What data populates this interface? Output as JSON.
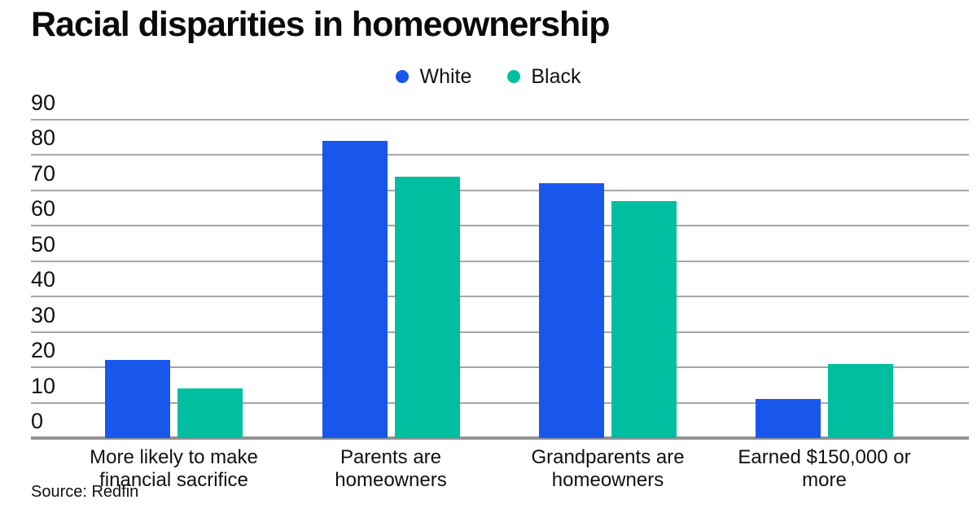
{
  "title": "Racial disparities in homeownership",
  "source": "Source: Redfin",
  "legend": [
    {
      "label": "White",
      "color": "#1957EC"
    },
    {
      "label": "Black",
      "color": "#00BFA0"
    }
  ],
  "chart_data": {
    "type": "bar",
    "title": "Racial disparities in homeownership",
    "categories": [
      "More likely to make\nfinancial sacrifice",
      "Parents are\nhomeowners",
      "Grandparents are\nhomeowners",
      "Earned $150,000 or\nmore"
    ],
    "series": [
      {
        "name": "White",
        "color": "#1957EC",
        "values": [
          22,
          84,
          72,
          11
        ]
      },
      {
        "name": "Black",
        "color": "#00BFA0",
        "values": [
          14,
          74,
          67,
          21
        ]
      }
    ],
    "xlabel": "",
    "ylabel": "",
    "ylim": [
      0,
      90
    ],
    "yticks": [
      0,
      10,
      20,
      30,
      40,
      50,
      60,
      70,
      80,
      90
    ],
    "grid": true,
    "legend_position": "top",
    "source": "Source: Redfin"
  }
}
